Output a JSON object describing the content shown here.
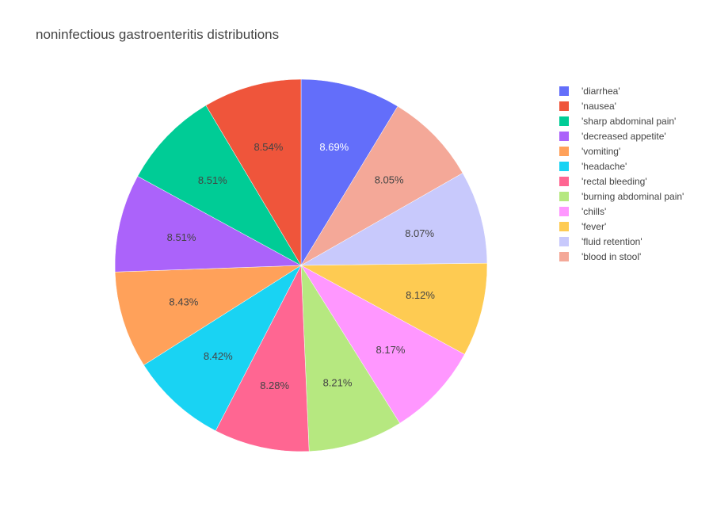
{
  "chart_data": {
    "type": "pie",
    "title": "noninfectious gastroenteritis distributions",
    "legend_position": "right",
    "slices": [
      {
        "label": "'diarrhea'",
        "value": 8.69,
        "text": "8.69%",
        "color": "#636efa"
      },
      {
        "label": "'blood in stool'",
        "value": 8.05,
        "text": "8.05%",
        "color": "#f4a898"
      },
      {
        "label": "'fluid retention'",
        "value": 8.07,
        "text": "8.07%",
        "color": "#c8c9fc"
      },
      {
        "label": "'fever'",
        "value": 8.12,
        "text": "8.12%",
        "color": "#fecb52"
      },
      {
        "label": "'chills'",
        "value": 8.17,
        "text": "8.17%",
        "color": "#ff97ff"
      },
      {
        "label": "'burning abdominal pain'",
        "value": 8.21,
        "text": "8.21%",
        "color": "#b6e880"
      },
      {
        "label": "'rectal bleeding'",
        "value": 8.28,
        "text": "8.28%",
        "color": "#ff6692"
      },
      {
        "label": "'headache'",
        "value": 8.42,
        "text": "8.42%",
        "color": "#19d3f3"
      },
      {
        "label": "'vomiting'",
        "value": 8.43,
        "text": "8.43%",
        "color": "#ffa15a"
      },
      {
        "label": "'decreased appetite'",
        "value": 8.51,
        "text": "8.51%",
        "color": "#ab63fa"
      },
      {
        "label": "'sharp abdominal pain'",
        "value": 8.51,
        "text": "8.51%",
        "color": "#00cc96"
      },
      {
        "label": "'nausea'",
        "value": 8.54,
        "text": "8.54%",
        "color": "#ef553b"
      }
    ],
    "legend": [
      {
        "label": "'diarrhea'",
        "color": "#636efa"
      },
      {
        "label": "'nausea'",
        "color": "#ef553b"
      },
      {
        "label": "'sharp abdominal pain'",
        "color": "#00cc96"
      },
      {
        "label": "'decreased appetite'",
        "color": "#ab63fa"
      },
      {
        "label": "'vomiting'",
        "color": "#ffa15a"
      },
      {
        "label": "'headache'",
        "color": "#19d3f3"
      },
      {
        "label": "'rectal bleeding'",
        "color": "#ff6692"
      },
      {
        "label": "'burning abdominal pain'",
        "color": "#b6e880"
      },
      {
        "label": "'chills'",
        "color": "#ff97ff"
      },
      {
        "label": "'fever'",
        "color": "#fecb52"
      },
      {
        "label": "'fluid retention'",
        "color": "#c8c9fc"
      },
      {
        "label": "'blood in stool'",
        "color": "#f4a898"
      }
    ]
  }
}
